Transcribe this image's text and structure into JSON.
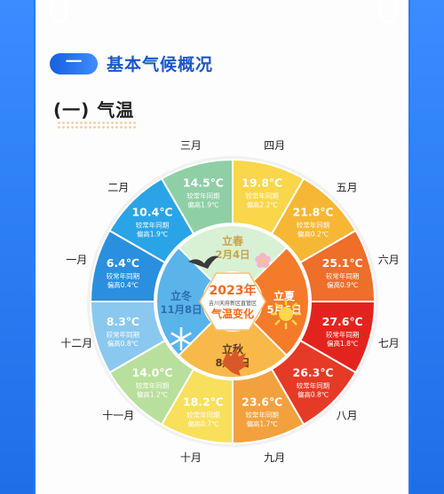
{
  "header": {
    "section_number": "一",
    "section_title": "基本气候概况",
    "subsection_title": "(一) 气温"
  },
  "center": {
    "year": "2023年",
    "subtitle": "吉川天府新区直管区",
    "caption": "气温变化"
  },
  "solar_terms": [
    {
      "name": "立春",
      "date": "2月4日",
      "color": "#c9a24a"
    },
    {
      "name": "立夏",
      "date": "5月6日",
      "color": "#ffffff"
    },
    {
      "name": "立秋",
      "date": "8月8日",
      "color": "#5a3a18"
    },
    {
      "name": "立冬",
      "date": "11月8日",
      "color": "#2c6cb0"
    }
  ],
  "months": [
    {
      "label": "一月",
      "temp": "6.4℃",
      "line1": "较常年同期",
      "line2": "偏高0.4℃",
      "color": "#2a8fde"
    },
    {
      "label": "二月",
      "temp": "10.4℃",
      "line1": "较常年同期",
      "line2": "偏高1.9℃",
      "color": "#2aa4e6"
    },
    {
      "label": "三月",
      "temp": "14.5℃",
      "line1": "较常年同期",
      "line2": "偏高1.9℃",
      "color": "#8fcfa6"
    },
    {
      "label": "四月",
      "temp": "19.8℃",
      "line1": "较常年同期",
      "line2": "偏高2.2℃",
      "color": "#f9d64a"
    },
    {
      "label": "五月",
      "temp": "21.8℃",
      "line1": "较常年同期",
      "line2": "偏高0.2℃",
      "color": "#f6b734"
    },
    {
      "label": "六月",
      "temp": "25.1℃",
      "line1": "较常年同期",
      "line2": "偏高0.9℃",
      "color": "#ee6e2a"
    },
    {
      "label": "七月",
      "temp": "27.6℃",
      "line1": "较常年同期",
      "line2": "偏高1.8℃",
      "color": "#e3241e"
    },
    {
      "label": "八月",
      "temp": "26.3℃",
      "line1": "较常年同期",
      "line2": "偏高0.8℃",
      "color": "#e53a26"
    },
    {
      "label": "九月",
      "temp": "23.6℃",
      "line1": "较常年同期",
      "line2": "偏高1.7℃",
      "color": "#f3a13e"
    },
    {
      "label": "十月",
      "temp": "18.2℃",
      "line1": "较常年同期",
      "line2": "偏高0.7℃",
      "color": "#f8e05c"
    },
    {
      "label": "十一月",
      "temp": "14.0℃",
      "line1": "较常年同期",
      "line2": "偏高1.2℃",
      "color": "#b9df9c"
    },
    {
      "label": "十二月",
      "temp": "8.3℃",
      "line1": "较常年同期",
      "line2": "偏高0.8℃",
      "color": "#8ac8ef"
    }
  ],
  "colors": {
    "brand_blue": "#2a7cf0",
    "quadrant_spring": "#d8f0d3",
    "quadrant_summer": "#f47b2a",
    "quadrant_autumn": "#f8b94a",
    "quadrant_winter": "#5ab4ea",
    "center_bg": "#ffffff",
    "center_text": "#f06b1d"
  }
}
